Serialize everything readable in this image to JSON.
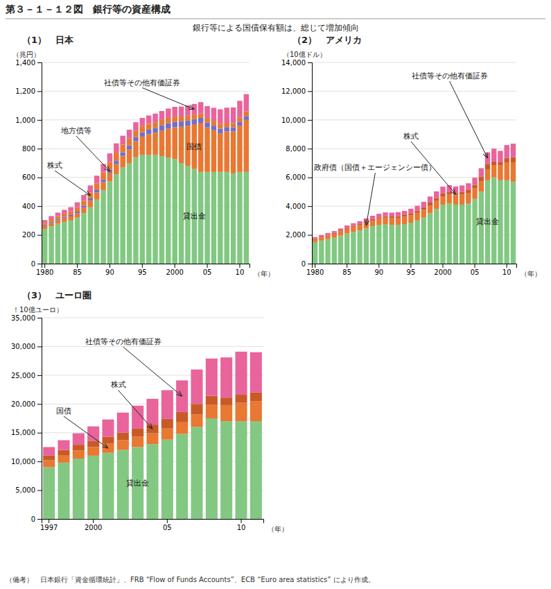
{
  "title": "第３－１－１２図　銀行等の資産構成",
  "subtitle": "銀行等による国債保有額は、総じて増加傾向",
  "footer": "（備考）　日本銀行「資金循環統計」、FRB “Flow of Funds Accounts”、ECB “Euro area statistics” により作成。",
  "chart_data": [
    {
      "type": "bar",
      "stacked": true,
      "grid": true,
      "title": "（1）　日本",
      "y_label": "（兆円）",
      "x_label": "（年）",
      "ylim": [
        0,
        1400
      ],
      "yticks": [
        0,
        200,
        400,
        600,
        800,
        {
          "value": 1000,
          "label": "1,000"
        },
        {
          "value": 1200,
          "label": "1,200"
        },
        {
          "value": 1400,
          "label": "1,400"
        }
      ],
      "categories": [
        "1980",
        null,
        null,
        null,
        null,
        "85",
        null,
        null,
        null,
        null,
        "90",
        null,
        null,
        null,
        null,
        "95",
        null,
        null,
        null,
        null,
        "2000",
        null,
        null,
        null,
        null,
        "05",
        null,
        null,
        null,
        null,
        "10",
        null
      ],
      "series": [
        {
          "name": "貸出金",
          "color": "#82c882",
          "values": [
            240,
            260,
            278,
            290,
            300,
            320,
            352,
            392,
            445,
            512,
            572,
            622,
            668,
            700,
            740,
            758,
            758,
            755,
            748,
            738,
            728,
            700,
            678,
            658,
            638,
            638,
            638,
            638,
            638,
            628,
            638,
            638
          ]
        },
        {
          "name": "国債",
          "color": "#e87832",
          "values": [
            20,
            22,
            24,
            26,
            28,
            30,
            36,
            46,
            50,
            55,
            60,
            70,
            82,
            96,
            112,
            126,
            142,
            156,
            178,
            202,
            222,
            252,
            282,
            312,
            342,
            310,
            290,
            270,
            282,
            292,
            322,
            362
          ]
        },
        {
          "name": "地方債等",
          "color": "#7070c8",
          "values": [
            8,
            9,
            9,
            10,
            10,
            12,
            14,
            16,
            17,
            18,
            20,
            22,
            24,
            26,
            28,
            30,
            32,
            34,
            36,
            38,
            38,
            37,
            36,
            35,
            34,
            33,
            32,
            31,
            30,
            29,
            28,
            27
          ]
        },
        {
          "name": "株式",
          "color": "#e87832",
          "values": [
            15,
            18,
            20,
            22,
            25,
            30,
            35,
            40,
            45,
            50,
            55,
            58,
            54,
            50,
            46,
            43,
            41,
            39,
            38,
            36,
            35,
            34,
            33,
            32,
            32,
            33,
            34,
            35,
            30,
            28,
            30,
            32
          ]
        },
        {
          "name": "社債等その他有価証券",
          "color": "#e8649b",
          "values": [
            20,
            22,
            24,
            26,
            30,
            35,
            40,
            50,
            55,
            58,
            60,
            65,
            62,
            60,
            58,
            57,
            58,
            60,
            62,
            65,
            68,
            70,
            72,
            74,
            78,
            82,
            90,
            100,
            105,
            110,
            115,
            120
          ]
        }
      ]
    },
    {
      "type": "bar",
      "stacked": true,
      "grid": true,
      "title": "（2）　アメリカ",
      "y_label": "（10億ドル）",
      "x_label": "（年）",
      "ylim": [
        0,
        14000
      ],
      "yticks": [
        0,
        {
          "value": 2000,
          "label": "2,000"
        },
        {
          "value": 4000,
          "label": "4,000"
        },
        {
          "value": 6000,
          "label": "6,000"
        },
        {
          "value": 8000,
          "label": "8,000"
        },
        {
          "value": 10000,
          "label": "10,000"
        },
        {
          "value": 12000,
          "label": "12,000"
        },
        {
          "value": 14000,
          "label": "14,000"
        }
      ],
      "categories": [
        "1980",
        null,
        null,
        null,
        null,
        "85",
        null,
        null,
        null,
        null,
        "90",
        null,
        null,
        null,
        null,
        "95",
        null,
        null,
        null,
        null,
        "2000",
        null,
        null,
        null,
        null,
        "05",
        null,
        null,
        null,
        null,
        "10",
        null
      ],
      "series": [
        {
          "name": "貸出金",
          "color": "#82c882",
          "values": [
            1500,
            1600,
            1700,
            1800,
            1950,
            2100,
            2200,
            2300,
            2450,
            2600,
            2700,
            2750,
            2700,
            2700,
            2750,
            2850,
            3000,
            3200,
            3500,
            3800,
            4100,
            4200,
            4100,
            4100,
            4200,
            4500,
            5000,
            5800,
            6000,
            5800,
            5800,
            5700
          ]
        },
        {
          "name": "政府債（国債＋エージェンシー債）",
          "color": "#e87832",
          "values": [
            200,
            220,
            250,
            270,
            290,
            320,
            350,
            370,
            390,
            400,
            420,
            450,
            470,
            490,
            510,
            520,
            530,
            540,
            550,
            560,
            580,
            600,
            650,
            700,
            720,
            730,
            740,
            760,
            850,
            1050,
            1250,
            1350
          ]
        },
        {
          "name": "株式",
          "color": "#c85a28",
          "values": [
            50,
            55,
            60,
            65,
            70,
            75,
            80,
            85,
            90,
            95,
            100,
            105,
            110,
            115,
            120,
            140,
            160,
            180,
            200,
            210,
            200,
            180,
            160,
            180,
            200,
            250,
            300,
            380,
            250,
            200,
            300,
            350
          ]
        },
        {
          "name": "社債等その他有価証券",
          "color": "#e8649b",
          "values": [
            100,
            110,
            120,
            130,
            140,
            160,
            180,
            200,
            220,
            240,
            250,
            260,
            270,
            280,
            290,
            310,
            340,
            380,
            420,
            460,
            480,
            480,
            460,
            460,
            470,
            500,
            600,
            800,
            900,
            800,
            900,
            950
          ]
        }
      ]
    },
    {
      "type": "bar",
      "stacked": true,
      "grid": true,
      "title": "（3）　ユーロ圏",
      "y_label": "！10億ユーロ）",
      "x_label": "（年）",
      "ylim": [
        0,
        35000
      ],
      "yticks": [
        0,
        {
          "value": 5000,
          "label": "5,000"
        },
        {
          "value": 10000,
          "label": "10,000"
        },
        {
          "value": 15000,
          "label": "15,000"
        },
        {
          "value": 20000,
          "label": "20,000"
        },
        {
          "value": 25000,
          "label": "25,000"
        },
        {
          "value": 30000,
          "label": "30,000"
        },
        {
          "value": 35000,
          "label": "35,000"
        }
      ],
      "categories": [
        "1997",
        null,
        null,
        "2000",
        null,
        null,
        null,
        null,
        "05",
        null,
        null,
        null,
        null,
        "10",
        null
      ],
      "series": [
        {
          "name": "貸出金",
          "color": "#82c882",
          "values": [
            9000,
            9800,
            10500,
            11000,
            11500,
            12000,
            12500,
            13000,
            13800,
            14800,
            16000,
            17500,
            17000,
            17000,
            17000
          ]
        },
        {
          "name": "国債",
          "color": "#e87832",
          "values": [
            1200,
            1300,
            1400,
            1500,
            1600,
            1700,
            1800,
            1900,
            2000,
            2100,
            2200,
            2400,
            2800,
            3200,
            3500
          ]
        },
        {
          "name": "株式",
          "color": "#c85a28",
          "values": [
            800,
            900,
            1000,
            1100,
            1200,
            1300,
            1400,
            1500,
            1600,
            1700,
            1800,
            1500,
            1300,
            1400,
            1500
          ]
        },
        {
          "name": "社債等その他有価証券",
          "color": "#e8649b",
          "values": [
            1500,
            1700,
            2000,
            2500,
            3000,
            3500,
            4000,
            4500,
            5000,
            5500,
            6000,
            6500,
            7000,
            7500,
            7000
          ]
        }
      ]
    }
  ]
}
